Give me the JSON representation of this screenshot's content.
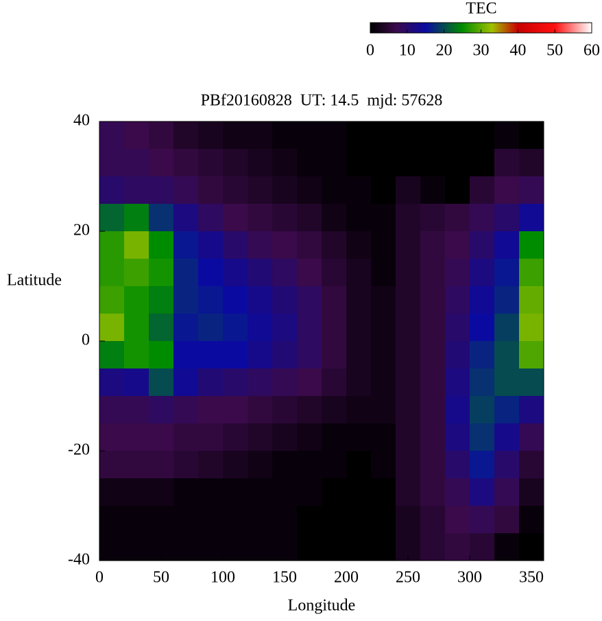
{
  "chart_data": {
    "type": "heatmap",
    "title": "PBf20160828  UT: 14.5  mjd: 57628",
    "xlabel": "Longitude",
    "ylabel": "Latitude",
    "xlim": [
      0,
      360
    ],
    "ylim": [
      -40,
      40
    ],
    "xticks": [
      0,
      50,
      100,
      150,
      200,
      250,
      300,
      350
    ],
    "yticks": [
      -40,
      -20,
      0,
      20,
      40
    ],
    "x": [
      10,
      30,
      50,
      70,
      90,
      110,
      130,
      150,
      170,
      190,
      210,
      230,
      250,
      270,
      290,
      310,
      330,
      350
    ],
    "y": [
      37.5,
      32.5,
      27.5,
      22.5,
      17.5,
      12.5,
      7.5,
      2.5,
      -2.5,
      -7.5,
      -12.5,
      -17.5,
      -22.5,
      -27.5,
      -32.5,
      -37.5
    ],
    "z": [
      [
        8,
        7,
        6,
        4,
        3,
        2,
        2,
        1,
        1,
        1,
        0,
        0,
        0,
        0,
        0,
        0,
        1,
        0
      ],
      [
        8,
        8,
        7,
        6,
        5,
        4,
        3,
        2,
        1,
        1,
        0,
        0,
        0,
        0,
        0,
        0,
        5,
        4
      ],
      [
        10,
        9,
        9,
        8,
        6,
        5,
        4,
        3,
        2,
        1,
        1,
        0,
        3,
        1,
        0,
        5,
        7,
        8
      ],
      [
        22,
        24,
        18,
        12,
        9,
        7,
        6,
        5,
        4,
        2,
        1,
        1,
        4,
        5,
        6,
        8,
        10,
        14
      ],
      [
        27,
        31,
        25,
        16,
        13,
        10,
        8,
        7,
        6,
        4,
        2,
        1,
        4,
        6,
        7,
        10,
        14,
        25
      ],
      [
        27,
        28,
        26,
        17,
        15,
        13,
        11,
        9,
        7,
        5,
        3,
        1,
        4,
        6,
        8,
        12,
        16,
        28
      ],
      [
        28,
        26,
        24,
        17,
        16,
        15,
        13,
        11,
        9,
        6,
        3,
        2,
        4,
        6,
        9,
        14,
        17,
        30
      ],
      [
        31,
        26,
        22,
        16,
        17,
        16,
        14,
        12,
        9,
        6,
        3,
        2,
        4,
        6,
        10,
        15,
        19,
        31
      ],
      [
        24,
        26,
        25,
        15,
        15,
        15,
        13,
        11,
        9,
        6,
        3,
        2,
        4,
        6,
        11,
        17,
        20,
        29
      ],
      [
        12,
        13,
        20,
        14,
        11,
        10,
        9,
        8,
        7,
        5,
        3,
        2,
        4,
        6,
        12,
        18,
        20,
        20
      ],
      [
        8,
        8,
        9,
        8,
        7,
        7,
        6,
        5,
        4,
        3,
        2,
        2,
        4,
        6,
        13,
        19,
        17,
        12
      ],
      [
        7,
        7,
        7,
        6,
        6,
        5,
        4,
        3,
        2,
        1,
        1,
        1,
        4,
        6,
        12,
        18,
        13,
        8
      ],
      [
        6,
        6,
        6,
        5,
        4,
        3,
        2,
        1,
        1,
        1,
        0,
        1,
        4,
        6,
        10,
        16,
        10,
        5
      ],
      [
        2,
        2,
        2,
        1,
        1,
        1,
        1,
        1,
        1,
        0,
        0,
        0,
        4,
        6,
        8,
        12,
        8,
        3
      ],
      [
        1,
        1,
        1,
        1,
        1,
        1,
        1,
        1,
        0,
        0,
        0,
        0,
        3,
        5,
        7,
        8,
        6,
        1
      ],
      [
        1,
        1,
        1,
        1,
        1,
        1,
        1,
        1,
        0,
        0,
        0,
        0,
        3,
        5,
        6,
        5,
        1,
        0
      ]
    ],
    "colorbar_label": "TEC",
    "zlim": [
      0,
      60
    ],
    "zticks": [
      0,
      10,
      20,
      30,
      40,
      50,
      60
    ],
    "colorscale": [
      {
        "value": 0,
        "color": "#000000"
      },
      {
        "value": 7,
        "color": "#3a0a4a"
      },
      {
        "value": 15,
        "color": "#0a0aa0"
      },
      {
        "value": 25,
        "color": "#008c00"
      },
      {
        "value": 33,
        "color": "#a0c000"
      },
      {
        "value": 40,
        "color": "#c80000"
      },
      {
        "value": 50,
        "color": "#ff1010"
      },
      {
        "value": 60,
        "color": "#ffffff"
      }
    ]
  }
}
